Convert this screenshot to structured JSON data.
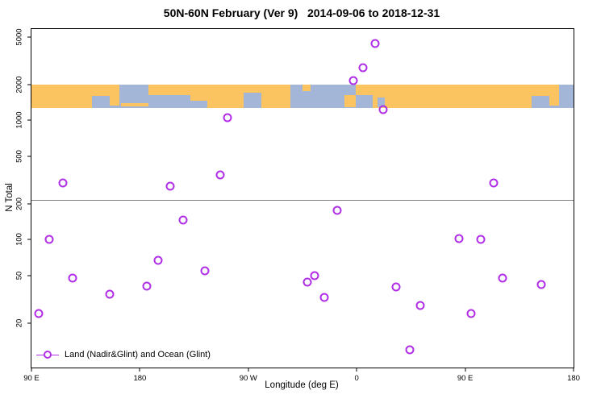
{
  "title": "50N-60N February (Ver 9)   2014-09-06 to 2018-12-31",
  "legend": {
    "label": "Land (Nadir&Glint) and Ocean (Glint)"
  },
  "chart_data": {
    "type": "scatter",
    "title": "50N-60N February (Ver 9)   2014-09-06 to 2018-12-31",
    "xlabel": "Longitude (deg E)",
    "ylabel": "N Total",
    "x_axis_note": "longitude wraps: 90E to 180 to 90W to 0 to 90E to 180",
    "xlim": [
      90,
      540
    ],
    "ylim_log": [
      8.5,
      5800
    ],
    "y_scale": "log10",
    "grid": false,
    "legend_position": "bottom-left",
    "point_color": "#B02FE6",
    "x_ticks": [
      {
        "value": 90,
        "label": "90 E"
      },
      {
        "value": 180,
        "label": "180"
      },
      {
        "value": 270,
        "label": "90 W"
      },
      {
        "value": 360,
        "label": "0"
      },
      {
        "value": 450,
        "label": "90 E"
      },
      {
        "value": 540,
        "label": "180"
      }
    ],
    "y_ticks": [
      {
        "value": 20,
        "label": "20"
      },
      {
        "value": 50,
        "label": "50"
      },
      {
        "value": 100,
        "label": "100"
      },
      {
        "value": 200,
        "label": "200"
      },
      {
        "value": 500,
        "label": "500"
      },
      {
        "value": 1000,
        "label": "1000"
      },
      {
        "value": 2000,
        "label": "2000"
      },
      {
        "value": 5000,
        "label": "5000"
      }
    ],
    "threshold_line": {
      "value": 215,
      "color": "#7F7F7F"
    },
    "map_band": {
      "description": "world-map strip of the 50N-60N latitude band drawn across the plot",
      "top_value": 2000,
      "bottom_value": 1260,
      "ocean_color": "#A4B6D8",
      "land_color": "#FBC460",
      "patches": [
        {
          "kind": "land",
          "lon0": 90,
          "lon1": 140,
          "top": 0.0,
          "h": 1.0
        },
        {
          "kind": "land",
          "lon0": 140,
          "lon1": 155,
          "top": 0.0,
          "h": 0.5
        },
        {
          "kind": "land",
          "lon0": 155,
          "lon1": 163,
          "top": 0.0,
          "h": 0.9
        },
        {
          "kind": "land",
          "lon0": 164,
          "lon1": 187,
          "top": 0.8,
          "h": 0.12
        },
        {
          "kind": "land",
          "lon0": 187,
          "lon1": 222,
          "top": 0.0,
          "h": 0.45
        },
        {
          "kind": "land",
          "lon0": 222,
          "lon1": 236,
          "top": 0.0,
          "h": 0.7
        },
        {
          "kind": "land",
          "lon0": 236,
          "lon1": 305,
          "top": 0.0,
          "h": 1.0
        },
        {
          "kind": "ocean",
          "lon0": 266,
          "lon1": 281,
          "top": 0.35,
          "h": 0.65
        },
        {
          "kind": "land",
          "lon0": 315,
          "lon1": 322,
          "top": 0.0,
          "h": 0.3
        },
        {
          "kind": "land",
          "lon0": 350,
          "lon1": 359,
          "top": 0.45,
          "h": 0.5
        },
        {
          "kind": "land",
          "lon0": 359,
          "lon1": 373,
          "top": 0.0,
          "h": 0.45
        },
        {
          "kind": "land",
          "lon0": 373,
          "lon1": 386,
          "top": 0.0,
          "h": 1.0
        },
        {
          "kind": "ocean",
          "lon0": 377,
          "lon1": 383,
          "top": 0.55,
          "h": 0.4
        },
        {
          "kind": "land",
          "lon0": 386,
          "lon1": 505,
          "top": 0.0,
          "h": 1.0
        },
        {
          "kind": "land",
          "lon0": 505,
          "lon1": 520,
          "top": 0.0,
          "h": 0.5
        },
        {
          "kind": "land",
          "lon0": 520,
          "lon1": 528,
          "top": 0.0,
          "h": 0.9
        }
      ]
    },
    "points": [
      {
        "lon": 96,
        "n": 24
      },
      {
        "lon": 105,
        "n": 100
      },
      {
        "lon": 116,
        "n": 300
      },
      {
        "lon": 124,
        "n": 48
      },
      {
        "lon": 155,
        "n": 35
      },
      {
        "lon": 186,
        "n": 41
      },
      {
        "lon": 195,
        "n": 67
      },
      {
        "lon": 205,
        "n": 280
      },
      {
        "lon": 216,
        "n": 145
      },
      {
        "lon": 234,
        "n": 55
      },
      {
        "lon": 247,
        "n": 350
      },
      {
        "lon": 253,
        "n": 1050
      },
      {
        "lon": 319,
        "n": 44
      },
      {
        "lon": 325,
        "n": 50
      },
      {
        "lon": 333,
        "n": 33
      },
      {
        "lon": 344,
        "n": 175
      },
      {
        "lon": 357,
        "n": 2150
      },
      {
        "lon": 365,
        "n": 2750
      },
      {
        "lon": 375,
        "n": 4400
      },
      {
        "lon": 382,
        "n": 1230
      },
      {
        "lon": 393,
        "n": 40
      },
      {
        "lon": 404,
        "n": 12
      },
      {
        "lon": 413,
        "n": 28
      },
      {
        "lon": 445,
        "n": 102
      },
      {
        "lon": 455,
        "n": 24
      },
      {
        "lon": 463,
        "n": 100
      },
      {
        "lon": 474,
        "n": 300
      },
      {
        "lon": 481,
        "n": 48
      },
      {
        "lon": 513,
        "n": 42
      }
    ]
  }
}
